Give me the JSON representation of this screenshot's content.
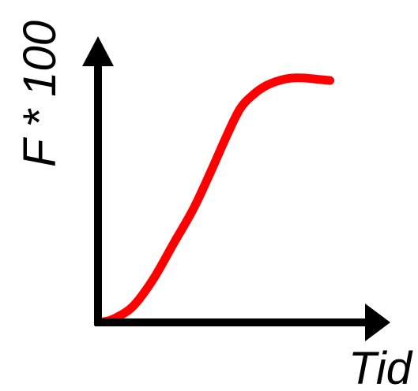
{
  "chart_data": {
    "type": "line",
    "title": "",
    "xlabel": "Tid",
    "ylabel": "F * 100",
    "grid": false,
    "ticks": false,
    "xlim": [
      0,
      10
    ],
    "ylim": [
      0,
      10
    ],
    "series": [
      {
        "color": "#ff0000",
        "x": [
          0.3,
          0.75,
          1.5,
          2.3,
          3.1,
          3.9,
          4.6,
          5.2,
          5.75,
          6.3,
          6.8,
          7.3,
          7.8,
          8.3,
          8.8,
          9.3
        ],
        "y": [
          0.02,
          0.15,
          0.65,
          1.75,
          3.2,
          4.65,
          6.2,
          7.6,
          8.75,
          9.35,
          9.7,
          9.9,
          10.0,
          10.0,
          9.95,
          9.9
        ]
      }
    ],
    "axis_color": "#000000"
  }
}
